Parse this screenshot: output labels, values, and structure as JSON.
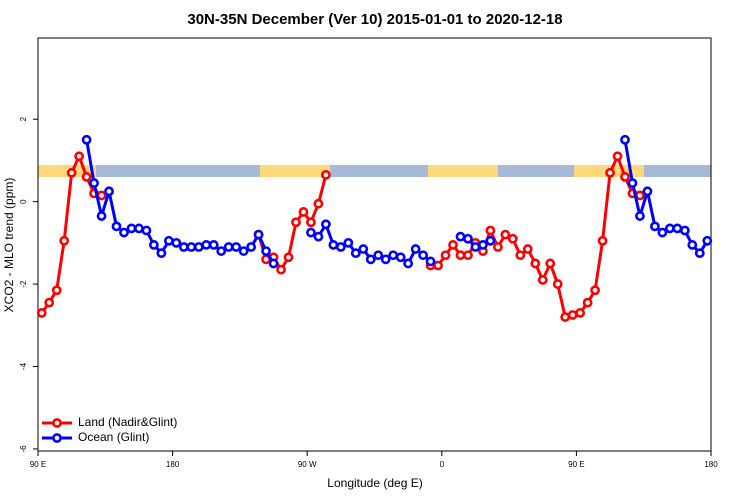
{
  "chart_data": {
    "type": "line",
    "title": "30N-35N December (Ver 10)   2015-01-01 to 2020-12-18",
    "x_label": "Longitude (deg E)",
    "y_label": "XCO2 - MLO trend (ppm)",
    "x": [
      92.5,
      97.5,
      102.5,
      107.5,
      112.5,
      117.5,
      122.5,
      127.5,
      132.5,
      137.5,
      142.5,
      147.5,
      152.5,
      157.5,
      162.5,
      167.5,
      172.5,
      177.5,
      182.5,
      187.5,
      192.5,
      197.5,
      202.5,
      207.5,
      212.5,
      217.5,
      222.5,
      227.5,
      232.5,
      237.5,
      242.5,
      247.5,
      252.5,
      257.5,
      262.5,
      267.5,
      272.5,
      277.5,
      282.5,
      287.5,
      292.5,
      297.5,
      302.5,
      307.5,
      312.5,
      317.5,
      322.5,
      327.5,
      332.5,
      337.5,
      342.5,
      347.5,
      352.5,
      357.5,
      362.5,
      367.5,
      372.5,
      377.5,
      382.5,
      387.5,
      392.5,
      397.5,
      402.5,
      407.5,
      412.5,
      417.5,
      422.5,
      427.5,
      432.5,
      437.5,
      442.5,
      447.5,
      452.5,
      457.5,
      462.5,
      467.5,
      472.5,
      477.5,
      482.5,
      487.5,
      492.5,
      497.5,
      502.5,
      507.5,
      512.5,
      517.5,
      522.5,
      527.5,
      532.5,
      537.5
    ],
    "series": [
      {
        "name": "Land (Nadir&Glint)",
        "color": "#ff0000",
        "values": [
          -2.7,
          -2.45,
          -2.15,
          -0.95,
          0.7,
          1.1,
          0.6,
          0.2,
          0.15,
          null,
          null,
          null,
          null,
          null,
          null,
          null,
          null,
          null,
          null,
          null,
          null,
          null,
          null,
          null,
          null,
          null,
          null,
          null,
          null,
          -0.8,
          -1.4,
          -1.35,
          -1.65,
          -1.35,
          -0.5,
          -0.25,
          -0.5,
          -0.05,
          0.65,
          null,
          null,
          null,
          null,
          null,
          null,
          null,
          null,
          null,
          null,
          null,
          null,
          null,
          -1.55,
          -1.55,
          -1.3,
          -1.05,
          -1.3,
          -1.3,
          -1.0,
          -1.2,
          -0.7,
          -1.1,
          -0.8,
          -0.9,
          -1.3,
          -1.15,
          -1.5,
          -1.9,
          -1.5,
          -2.0,
          -2.8,
          -2.75,
          -2.7,
          -2.45,
          -2.15,
          -0.95,
          0.7,
          1.1,
          0.6,
          0.2,
          0.15,
          null,
          null,
          null,
          null,
          null,
          null,
          null,
          null,
          null
        ]
      },
      {
        "name": "Ocean (Glint)",
        "color": "#0000ff",
        "values": [
          null,
          null,
          null,
          null,
          null,
          null,
          1.5,
          0.45,
          -0.35,
          0.25,
          -0.6,
          -0.75,
          -0.65,
          -0.65,
          -0.7,
          -1.05,
          -1.25,
          -0.95,
          -1.0,
          -1.1,
          -1.1,
          -1.1,
          -1.05,
          -1.05,
          -1.2,
          -1.1,
          -1.1,
          -1.2,
          -1.1,
          -0.8,
          -1.2,
          -1.5,
          null,
          null,
          null,
          null,
          -0.75,
          -0.85,
          -0.55,
          -1.05,
          -1.1,
          -1.0,
          -1.25,
          -1.15,
          -1.4,
          -1.3,
          -1.4,
          -1.3,
          -1.35,
          -1.5,
          -1.15,
          -1.3,
          -1.45,
          null,
          null,
          null,
          -0.85,
          -0.9,
          -1.1,
          -1.05,
          -0.95,
          null,
          null,
          null,
          null,
          null,
          null,
          null,
          null,
          null,
          null,
          null,
          null,
          null,
          null,
          null,
          null,
          null,
          1.5,
          0.45,
          -0.35,
          0.25,
          -0.6,
          -0.75,
          -0.65,
          -0.65,
          -0.7,
          -1.05,
          -1.25,
          -0.95
        ]
      }
    ],
    "xlim": [
      90,
      540
    ],
    "xticks": [
      {
        "value": 90,
        "label": "90 E"
      },
      180,
      {
        "value": 270,
        "label": "90 W"
      },
      {
        "value": 360,
        "label": "0"
      },
      {
        "value": 450,
        "label": "90 E"
      },
      {
        "value": 540,
        "label": "180"
      }
    ],
    "ylim": [
      -6.05,
      3.97
    ],
    "yticks": [
      -6,
      -4,
      -2,
      0,
      2
    ],
    "legend": "bottomleft"
  }
}
